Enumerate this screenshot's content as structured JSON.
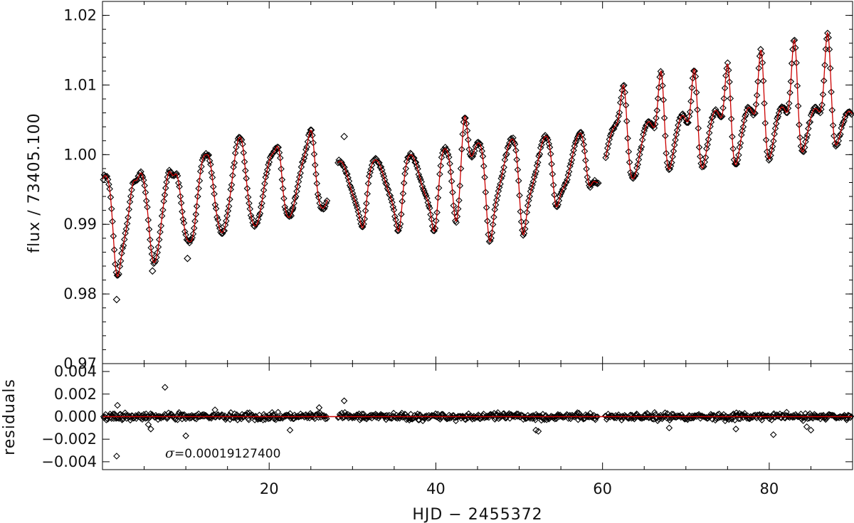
{
  "chart_data": [
    {
      "type": "scatter",
      "panel": "main",
      "ylabel": "flux / 73405.100",
      "xlim": [
        0,
        90
      ],
      "ylim": [
        0.97,
        1.022
      ],
      "y_ticks": [
        0.97,
        0.98,
        0.99,
        1.0,
        1.01,
        1.02
      ],
      "y_tick_labels": [
        "0.97",
        "0.98",
        "0.99",
        "1.00",
        "1.01",
        "1.02"
      ],
      "series": [
        {
          "marker": "diamond",
          "color": "#000000",
          "description_points": "dense observed flux samples"
        },
        {
          "line": "model",
          "color": "#cc0000"
        }
      ],
      "trend": {
        "x": [
          0,
          90
        ],
        "y": [
          0.9925,
          1.0035
        ]
      },
      "oscillation_amplitude": 0.006,
      "dips": [
        {
          "x": 1.8,
          "y": 0.9825
        },
        {
          "x": 6.2,
          "y": 0.9845
        },
        {
          "x": 10.5,
          "y": 0.9875
        },
        {
          "x": 31.2,
          "y": 0.9895
        },
        {
          "x": 35.5,
          "y": 0.989
        },
        {
          "x": 39.8,
          "y": 0.989
        },
        {
          "x": 42.5,
          "y": 0.99
        },
        {
          "x": 46.5,
          "y": 0.9875
        },
        {
          "x": 50.5,
          "y": 0.9885
        },
        {
          "x": 54.5,
          "y": 0.9925
        },
        {
          "x": 58.5,
          "y": 0.9955
        }
      ],
      "peaks": [
        {
          "x": 4.0,
          "y": 0.9963
        },
        {
          "x": 8.5,
          "y": 0.997
        },
        {
          "x": 12.5,
          "y": 1.0
        },
        {
          "x": 16.5,
          "y": 1.0025
        },
        {
          "x": 21.0,
          "y": 1.0012
        },
        {
          "x": 25.0,
          "y": 1.0035
        },
        {
          "x": 43.5,
          "y": 1.0055
        },
        {
          "x": 62.5,
          "y": 1.01
        },
        {
          "x": 67.0,
          "y": 1.012
        },
        {
          "x": 71.0,
          "y": 1.0123
        },
        {
          "x": 75.0,
          "y": 1.013
        },
        {
          "x": 79.0,
          "y": 1.015
        },
        {
          "x": 83.0,
          "y": 1.0165
        },
        {
          "x": 87.0,
          "y": 1.0175
        }
      ],
      "gaps": [
        [
          27.0,
          28.2
        ],
        [
          59.5,
          60.3
        ]
      ],
      "outliers": [
        {
          "x": 1.7,
          "y": 0.9792
        },
        {
          "x": 6.0,
          "y": 0.9833
        },
        {
          "x": 10.2,
          "y": 0.9851
        },
        {
          "x": 22.8,
          "y": 0.9922
        },
        {
          "x": 29.0,
          "y": 1.0026
        }
      ]
    },
    {
      "type": "scatter",
      "panel": "residuals",
      "xlabel": "HJD − 2455372",
      "ylabel": "residuals",
      "xlim": [
        0,
        90
      ],
      "ylim": [
        -0.0047,
        0.0047
      ],
      "x_ticks": [
        20,
        40,
        60,
        80
      ],
      "x_tick_labels": [
        "20",
        "40",
        "60",
        "80"
      ],
      "y_ticks": [
        -0.004,
        -0.002,
        0.0,
        0.002,
        0.004
      ],
      "y_tick_labels": [
        "−0.004",
        "−0.002",
        "0.000",
        "0.002",
        "0.004"
      ],
      "zero_line_color": "#cc0000",
      "scatter_sigma": 0.000191274,
      "outliers": [
        {
          "x": 1.7,
          "y": -0.0035
        },
        {
          "x": 1.8,
          "y": 0.001
        },
        {
          "x": 5.5,
          "y": -0.0007
        },
        {
          "x": 5.8,
          "y": -0.0011
        },
        {
          "x": 7.5,
          "y": 0.0026
        },
        {
          "x": 10.0,
          "y": -0.0017
        },
        {
          "x": 13.5,
          "y": 0.0006
        },
        {
          "x": 22.5,
          "y": -0.0012
        },
        {
          "x": 26.0,
          "y": 0.0008
        },
        {
          "x": 29.0,
          "y": 0.0014
        },
        {
          "x": 52.0,
          "y": -0.0012
        },
        {
          "x": 52.3,
          "y": -0.0013
        },
        {
          "x": 68.0,
          "y": -0.001
        },
        {
          "x": 76.0,
          "y": -0.0011
        },
        {
          "x": 80.5,
          "y": -0.0016
        },
        {
          "x": 84.5,
          "y": -0.0009
        },
        {
          "x": 85.0,
          "y": -0.0012
        }
      ]
    }
  ],
  "annotation": {
    "sigma_symbol": "σ",
    "sigma_text": "=0.00019127400"
  }
}
